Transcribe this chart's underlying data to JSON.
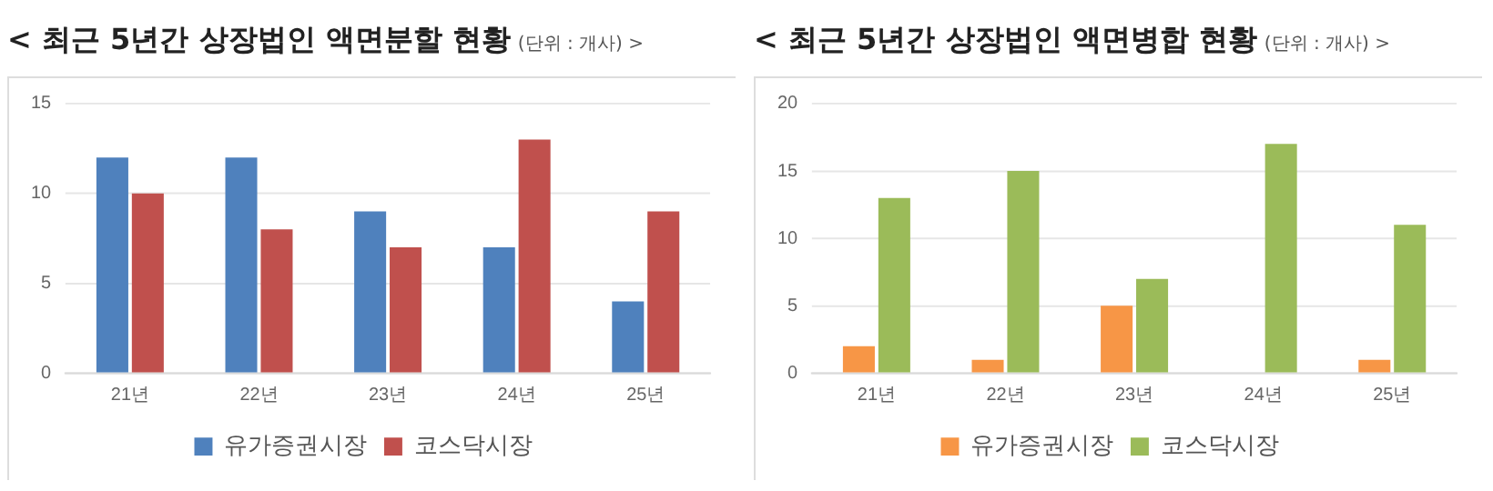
{
  "chart_data": [
    {
      "type": "bar",
      "title": "< 최근 5년간 상장법인 액면분할 현황",
      "subtitle": "(단위 : 개사) >",
      "categories": [
        "21년",
        "22년",
        "23년",
        "24년",
        "25년"
      ],
      "series": [
        {
          "name": "유가증권시장",
          "color": "#4f81bd",
          "values": [
            12,
            12,
            9,
            7,
            4
          ]
        },
        {
          "name": "코스닥시장",
          "color": "#c0504d",
          "values": [
            10,
            8,
            7,
            13,
            9
          ]
        }
      ],
      "ylim": [
        0,
        15
      ],
      "yticks": [
        0,
        5,
        10,
        15
      ],
      "grid": "y",
      "legend": "bottom"
    },
    {
      "type": "bar",
      "title": "< 최근 5년간 상장법인 액면병합 현황",
      "subtitle": "(단위 : 개사) >",
      "categories": [
        "21년",
        "22년",
        "23년",
        "24년",
        "25년"
      ],
      "series": [
        {
          "name": "유가증권시장",
          "color": "#f79646",
          "values": [
            2,
            1,
            5,
            0,
            1
          ]
        },
        {
          "name": "코스닥시장",
          "color": "#9bbb59",
          "values": [
            13,
            15,
            7,
            17,
            11
          ]
        }
      ],
      "ylim": [
        0,
        20
      ],
      "yticks": [
        0,
        5,
        10,
        15,
        20
      ],
      "grid": "y",
      "legend": "bottom"
    }
  ]
}
